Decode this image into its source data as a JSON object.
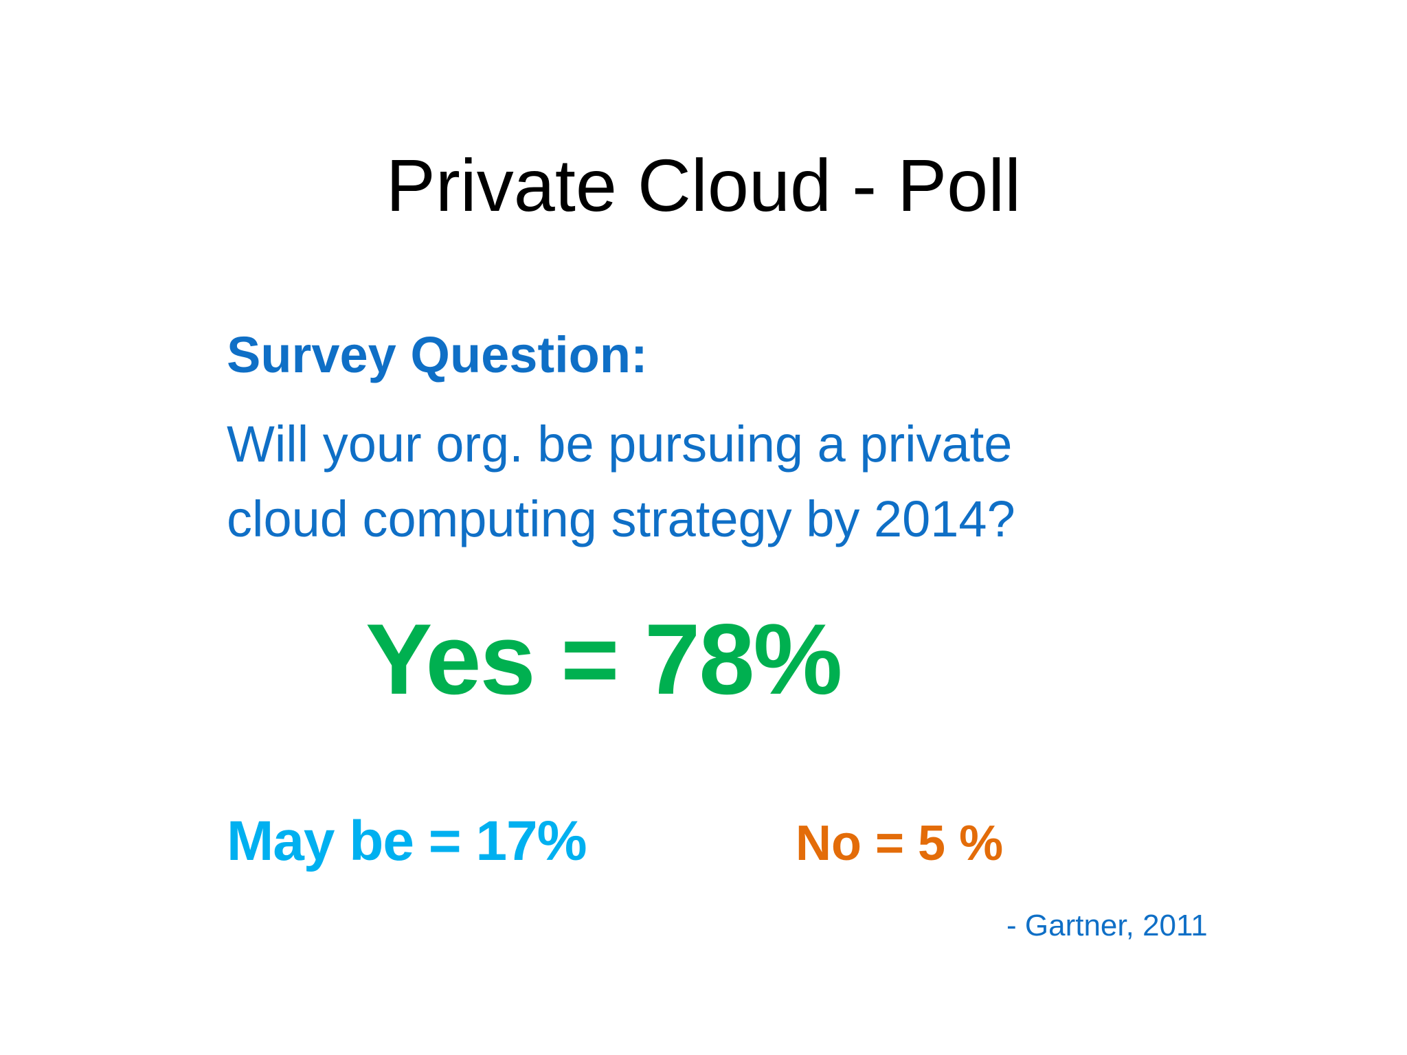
{
  "slide": {
    "title": "Private Cloud - Poll",
    "question_label": "Survey Question:",
    "question_lines": [
      "Will your org. be pursuing a private",
      "cloud computing strategy by 2014?"
    ],
    "results": {
      "yes": "Yes = 78%",
      "maybe": "May be = 17%",
      "no": "No = 5 %"
    },
    "source": "- Gartner, 2011"
  },
  "colors": {
    "title": "#000000",
    "question": "#0f6fc6",
    "yes": "#00b050",
    "maybe": "#00b0f0",
    "no": "#e36c09",
    "source": "#0f6fc6"
  }
}
